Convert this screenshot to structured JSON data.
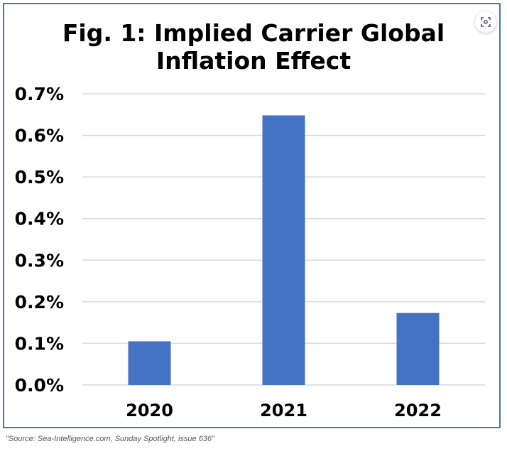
{
  "chart_data": {
    "type": "bar",
    "title_lines": [
      "Fig. 1: Implied Carrier Global",
      "Inflation Effect"
    ],
    "categories": [
      "2020",
      "2021",
      "2022"
    ],
    "values": [
      0.105,
      0.648,
      0.173
    ],
    "value_unit": "%",
    "ylim": [
      0,
      0.7
    ],
    "yticks": [
      0.0,
      0.1,
      0.2,
      0.3,
      0.4,
      0.5,
      0.6,
      0.7
    ],
    "ytick_labels": [
      "0.0%",
      "0.1%",
      "0.2%",
      "0.3%",
      "0.4%",
      "0.5%",
      "0.6%",
      "0.7%"
    ],
    "xlabel": "",
    "ylabel": "",
    "grid": true,
    "legend": "none",
    "colors": {
      "bar": "#4472c4",
      "frame": "#4472c4",
      "grid": "#d9d9d9"
    }
  },
  "source_note": "\"Source: Sea-Intelligence.com, Sunday Spotlight, issue 636\"",
  "overlay": {
    "lens_icon": "visual-search-icon"
  }
}
